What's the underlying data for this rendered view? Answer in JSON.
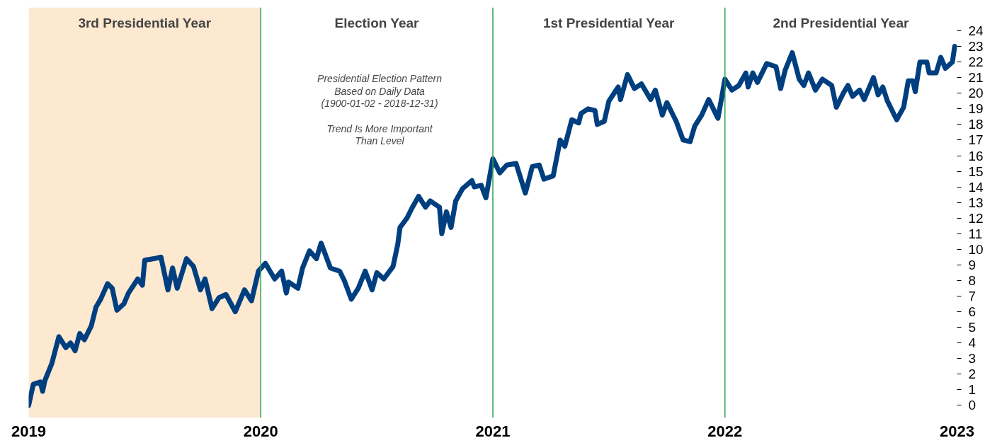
{
  "chart_data": {
    "type": "line",
    "x": [
      2019.0,
      2019.02,
      2019.05,
      2019.06,
      2019.07,
      2019.1,
      2019.13,
      2019.16,
      2019.18,
      2019.2,
      2019.22,
      2019.24,
      2019.27,
      2019.29,
      2019.31,
      2019.34,
      2019.36,
      2019.38,
      2019.41,
      2019.43,
      2019.47,
      2019.49,
      2019.5,
      2019.54,
      2019.57,
      2019.6,
      2019.62,
      2019.64,
      2019.68,
      2019.71,
      2019.74,
      2019.76,
      2019.79,
      2019.82,
      2019.85,
      2019.89,
      2019.93,
      2019.96,
      2019.99,
      2020.02,
      2020.06,
      2020.09,
      2020.11,
      2020.12,
      2020.16,
      2020.18,
      2020.21,
      2020.24,
      2020.26,
      2020.3,
      2020.34,
      2020.36,
      2020.39,
      2020.42,
      2020.45,
      2020.48,
      2020.5,
      2020.53,
      2020.57,
      2020.59,
      2020.6,
      2020.63,
      2020.65,
      2020.68,
      2020.71,
      2020.73,
      2020.77,
      2020.78,
      2020.8,
      2020.82,
      2020.84,
      2020.87,
      2020.91,
      2020.92,
      2020.95,
      2020.97,
      2021.0,
      2021.03,
      2021.06,
      2021.1,
      2021.14,
      2021.17,
      2021.2,
      2021.22,
      2021.26,
      2021.29,
      2021.31,
      2021.34,
      2021.37,
      2021.38,
      2021.41,
      2021.44,
      2021.45,
      2021.48,
      2021.5,
      2021.54,
      2021.55,
      2021.58,
      2021.61,
      2021.64,
      2021.68,
      2021.7,
      2021.73,
      2021.75,
      2021.79,
      2021.82,
      2021.85,
      2021.87,
      2021.9,
      2021.93,
      2021.97,
      2022.0,
      2022.03,
      2022.06,
      2022.09,
      2022.1,
      2022.12,
      2022.14,
      2022.18,
      2022.22,
      2022.24,
      2022.26,
      2022.29,
      2022.32,
      2022.34,
      2022.36,
      2022.39,
      2022.42,
      2022.46,
      2022.48,
      2022.51,
      2022.53,
      2022.55,
      2022.58,
      2022.6,
      2022.64,
      2022.66,
      2022.68,
      2022.7,
      2022.74,
      2022.77,
      2022.79,
      2022.81,
      2022.82,
      2022.84,
      2022.87,
      2022.88,
      2022.91,
      2022.93,
      2022.95,
      2022.98,
      2022.99
    ],
    "series": [
      {
        "color": "#003f7f",
        "values": [
          0.0,
          1.35,
          1.5,
          0.9,
          1.6,
          2.7,
          4.4,
          3.7,
          4.0,
          3.5,
          4.6,
          4.2,
          5.1,
          6.3,
          6.8,
          7.8,
          7.5,
          6.1,
          6.5,
          7.2,
          8.1,
          7.7,
          9.3,
          9.4,
          9.5,
          7.4,
          8.8,
          7.5,
          9.4,
          8.9,
          7.4,
          8.1,
          6.2,
          6.9,
          7.1,
          6.0,
          7.4,
          6.7,
          8.6,
          9.1,
          8.1,
          8.6,
          7.2,
          7.9,
          7.5,
          8.8,
          9.9,
          9.4,
          10.4,
          8.8,
          8.6,
          8.0,
          6.8,
          7.5,
          8.6,
          7.4,
          8.5,
          8.1,
          8.9,
          10.3,
          11.4,
          12.0,
          12.6,
          13.4,
          12.7,
          13.1,
          12.7,
          11.0,
          12.4,
          11.4,
          13.1,
          13.9,
          14.4,
          14.0,
          14.1,
          13.3,
          15.8,
          14.9,
          15.4,
          15.5,
          13.6,
          15.3,
          15.4,
          14.5,
          14.7,
          17.0,
          16.6,
          18.3,
          18.1,
          18.7,
          19.0,
          18.9,
          18.0,
          18.2,
          19.5,
          20.4,
          19.6,
          21.2,
          20.3,
          20.6,
          19.6,
          20.2,
          18.6,
          19.4,
          18.2,
          17.0,
          16.9,
          17.9,
          18.6,
          19.6,
          18.4,
          20.9,
          20.2,
          20.5,
          21.3,
          20.4,
          21.3,
          20.7,
          21.9,
          21.7,
          20.3,
          21.5,
          22.6,
          20.9,
          20.5,
          21.3,
          20.2,
          20.9,
          20.5,
          19.1,
          20.0,
          20.5,
          19.8,
          20.2,
          19.6,
          21.0,
          19.9,
          20.4,
          19.5,
          18.3,
          19.1,
          20.8,
          20.8,
          20.1,
          22.0,
          22.0,
          21.3,
          21.3,
          22.3,
          21.6,
          22.0,
          23.0
        ]
      }
    ],
    "xlim": [
      2019,
      2023
    ],
    "xticks": [
      2019,
      2020,
      2021,
      2022,
      2023
    ],
    "ylim": [
      -0.8,
      25.5
    ],
    "yticks": [
      0,
      1,
      2,
      3,
      4,
      5,
      6,
      7,
      8,
      9,
      10,
      11,
      12,
      13,
      14,
      15,
      16,
      17,
      18,
      19,
      20,
      21,
      22,
      23,
      24
    ],
    "grid": false,
    "marker": "none",
    "line_style": "solid",
    "bands": [
      {
        "axis": "x",
        "from": 2019,
        "to": 2020,
        "label": "3rd Presidential Year",
        "color": "#fde8d0"
      }
    ],
    "ref_lines": [
      {
        "axis": "x",
        "value": 2020,
        "color": "#2ca05a"
      },
      {
        "axis": "x",
        "value": 2021,
        "color": "#2ca05a"
      },
      {
        "axis": "x",
        "value": 2022,
        "color": "#2ca05a"
      }
    ],
    "annotations": [
      "Election Year",
      "1st Presidential Year",
      "2nd Presidential Year",
      "Presidential Election Pattern\nBased on Daily Data\n(1900-01-02 - 2018-12-31)\n\nTrend Is More Important\nThan Level"
    ]
  }
}
